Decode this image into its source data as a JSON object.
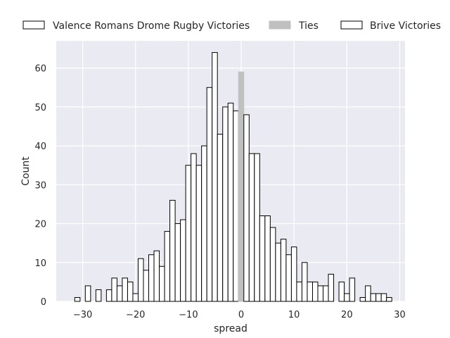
{
  "chart_data": {
    "type": "bar",
    "title": "",
    "xlabel": "spread",
    "ylabel": "Count",
    "xlim": [
      -35,
      31
    ],
    "ylim": [
      0,
      67
    ],
    "x_ticks": [
      -30,
      -20,
      -10,
      0,
      10,
      20,
      30
    ],
    "y_ticks": [
      0,
      10,
      20,
      30,
      40,
      50,
      60
    ],
    "x_tick_labels": [
      "−30",
      "−20",
      "−10",
      "0",
      "10",
      "20",
      "30"
    ],
    "y_tick_labels": [
      "0",
      "10",
      "20",
      "30",
      "40",
      "50",
      "60"
    ],
    "grid": true,
    "legend": {
      "placement": "top",
      "entries": [
        "Valence Romans Drome Rugby Victories",
        "Ties",
        "Brive Victories"
      ]
    },
    "series": [
      {
        "name": "Valence Romans Drome Rugby Victories",
        "color": "#ffffff",
        "edge_color": "#000000",
        "x": [
          -31,
          -30,
          -29,
          -28,
          -27,
          -26,
          -25,
          -24,
          -23,
          -22,
          -21,
          -20,
          -19,
          -18,
          -17,
          -16,
          -15,
          -14,
          -13,
          -12,
          -11,
          -10,
          -9,
          -8,
          -7,
          -6,
          -5,
          -4,
          -3,
          -2,
          -1
        ],
        "values": [
          1,
          0,
          4,
          0,
          3,
          0,
          3,
          6,
          4,
          6,
          5,
          2,
          11,
          8,
          12,
          13,
          9,
          18,
          26,
          20,
          21,
          35,
          38,
          35,
          40,
          55,
          64,
          43,
          50,
          51,
          49
        ]
      },
      {
        "name": "Ties",
        "color": "#c0c0c0",
        "edge_color": "#c0c0c0",
        "x": [
          0
        ],
        "values": [
          59
        ]
      },
      {
        "name": "Brive Victories",
        "color": "#ffffff",
        "edge_color": "#000000",
        "x": [
          1,
          2,
          3,
          4,
          5,
          6,
          7,
          8,
          9,
          10,
          11,
          12,
          13,
          14,
          15,
          16,
          17,
          18,
          19,
          20,
          21,
          22,
          23,
          24,
          25,
          26,
          27,
          28
        ],
        "values": [
          48,
          38,
          38,
          22,
          22,
          19,
          15,
          16,
          12,
          14,
          5,
          10,
          5,
          5,
          4,
          4,
          7,
          0,
          5,
          2,
          6,
          0,
          1,
          4,
          2,
          2,
          2,
          1
        ]
      }
    ]
  },
  "colors": {
    "plot_background": "#eaeaf2",
    "grid": "#ffffff",
    "text": "#262626"
  }
}
